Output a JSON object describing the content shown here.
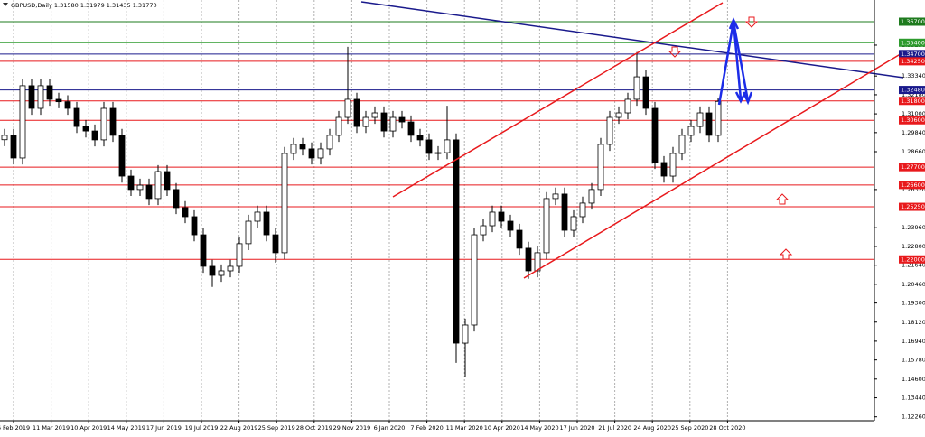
{
  "chart_data": {
    "type": "candlestick",
    "title": "GBPUSD,Daily  1.31580 1.31979 1.31435 1.31770",
    "grid": true,
    "ylim": [
      1.1202,
      1.3804
    ],
    "yticks": [
      {
        "value": 1.3525,
        "label": "1.35250"
      },
      {
        "value": 1.3334,
        "label": "1.33340"
      },
      {
        "value": 1.3218,
        "label": "1.32180"
      },
      {
        "value": 1.31,
        "label": "1.31000"
      },
      {
        "value": 1.2984,
        "label": "1.29840"
      },
      {
        "value": 1.2866,
        "label": "1.28660"
      },
      {
        "value": 1.2632,
        "label": "1.26320"
      },
      {
        "value": 1.2396,
        "label": "1.23960"
      },
      {
        "value": 1.228,
        "label": "1.22800"
      },
      {
        "value": 1.2164,
        "label": "1.21640"
      },
      {
        "value": 1.2046,
        "label": "1.20460"
      },
      {
        "value": 1.193,
        "label": "1.19300"
      },
      {
        "value": 1.1812,
        "label": "1.18120"
      },
      {
        "value": 1.1694,
        "label": "1.16940"
      },
      {
        "value": 1.1578,
        "label": "1.15780"
      },
      {
        "value": 1.146,
        "label": "1.14600"
      },
      {
        "value": 1.1344,
        "label": "1.13440"
      },
      {
        "value": 1.1226,
        "label": "1.12260"
      }
    ],
    "xticks": [
      "6 Feb 2019",
      "11 Mar 2019",
      "10 Apr 2019",
      "14 May 2019",
      "17 Jun 2019",
      "19 Jul 2019",
      "22 Aug 2019",
      "25 Sep 2019",
      "28 Oct 2019",
      "29 Nov 2019",
      "6 Jan 2020",
      "7 Feb 2020",
      "11 Mar 2020",
      "10 Apr 2020",
      "14 May 2020",
      "17 Jun 2020",
      "21 Jul 2020",
      "24 Aug 2020",
      "25 Sep 2020",
      "28 Oct 2020"
    ],
    "levels": [
      {
        "value": 1.367,
        "label": "1.36700",
        "color": "#1e7b1e"
      },
      {
        "value": 1.354,
        "label": "1.35400",
        "color": "#2e9b2e"
      },
      {
        "value": 1.347,
        "label": "1.34700",
        "color": "#1a1a8c"
      },
      {
        "value": 1.3425,
        "label": "1.34250",
        "color": "#e8191c"
      },
      {
        "value": 1.3248,
        "label": "1.32480",
        "color": "#1a1a8c"
      },
      {
        "value": 1.318,
        "label": "1.31800",
        "color": "#e8191c"
      },
      {
        "value": 1.306,
        "label": "1.30600",
        "color": "#e8191c"
      },
      {
        "value": 1.277,
        "label": "1.27700",
        "color": "#e8191c"
      },
      {
        "value": 1.266,
        "label": "1.26600",
        "color": "#e8191c"
      },
      {
        "value": 1.2525,
        "label": "1.25250",
        "color": "#e8191c"
      },
      {
        "value": 1.22,
        "label": "1.22000",
        "color": "#e8191c"
      }
    ],
    "open": [
      1.294,
      1.2967,
      1.2827,
      1.3274,
      1.3134,
      1.3274,
      1.319,
      1.3175,
      1.3134,
      1.3022,
      1.2994,
      1.2939,
      1.3134,
      1.2967,
      1.2715,
      1.2632,
      1.2659,
      1.2576,
      1.2743,
      1.2632,
      1.252,
      1.2464,
      1.2352,
      1.2157,
      1.2101,
      1.2129,
      1.2157,
      1.2297,
      1.2436,
      1.2492,
      1.2352,
      1.2241,
      1.2855,
      1.2911,
      1.2883,
      1.2827,
      1.2883,
      1.2967,
      1.3078,
      1.319,
      1.3022,
      1.3078,
      1.3106,
      1.2994,
      1.3078,
      1.305,
      1.2967,
      1.2939,
      1.2855,
      1.286,
      1.2939,
      1.1682,
      1.1794,
      1.2352,
      1.2408,
      1.2492,
      1.2436,
      1.238,
      1.2269,
      1.2129,
      1.2241,
      1.2576,
      1.2604,
      1.238,
      1.2464,
      1.2548,
      1.2632,
      1.2911,
      1.3078,
      1.3106,
      1.319,
      1.3329,
      1.3134,
      1.2799,
      1.2715,
      1.2855,
      1.2967,
      1.3022,
      1.3106,
      1.2967
    ],
    "high": [
      1.3007,
      1.3007,
      1.3314,
      1.3314,
      1.3314,
      1.3314,
      1.323,
      1.3215,
      1.3174,
      1.3062,
      1.3034,
      1.3174,
      1.3174,
      1.3007,
      1.2755,
      1.2699,
      1.2699,
      1.2783,
      1.2783,
      1.2672,
      1.256,
      1.2504,
      1.2392,
      1.2197,
      1.2169,
      1.2197,
      1.2337,
      1.2476,
      1.2532,
      1.2532,
      1.2392,
      1.2895,
      1.2951,
      1.2951,
      1.2923,
      1.2923,
      1.3007,
      1.3118,
      1.3514,
      1.323,
      1.3118,
      1.3146,
      1.3146,
      1.3118,
      1.3118,
      1.309,
      1.3007,
      1.2979,
      1.29,
      1.315,
      1.2979,
      1.1834,
      1.2392,
      1.2448,
      1.2532,
      1.2532,
      1.2476,
      1.242,
      1.2309,
      1.2281,
      1.2616,
      1.2644,
      1.2644,
      1.2504,
      1.2588,
      1.2672,
      1.2951,
      1.3118,
      1.3146,
      1.323,
      1.3482,
      1.3369,
      1.3174,
      1.2839,
      1.2895,
      1.3007,
      1.3062,
      1.3146,
      1.3146,
      1.3198
    ],
    "low": [
      1.29,
      1.2787,
      1.2787,
      1.3094,
      1.3094,
      1.315,
      1.3135,
      1.3094,
      1.2982,
      1.2954,
      1.2899,
      1.2899,
      1.2927,
      1.2675,
      1.2592,
      1.2592,
      1.2536,
      1.2536,
      1.2592,
      1.248,
      1.2424,
      1.2312,
      1.2117,
      1.203,
      1.2061,
      1.2089,
      1.2117,
      1.2257,
      1.2396,
      1.2312,
      1.218,
      1.2201,
      1.2815,
      1.2843,
      1.2787,
      1.2787,
      1.2843,
      1.2927,
      1.3038,
      1.2982,
      1.2982,
      1.3038,
      1.2954,
      1.2954,
      1.301,
      1.2927,
      1.2899,
      1.2815,
      1.2815,
      1.282,
      1.156,
      1.147,
      1.1754,
      1.2312,
      1.2368,
      1.2396,
      1.234,
      1.2229,
      1.208,
      1.2089,
      1.2201,
      1.2536,
      1.234,
      1.234,
      1.2424,
      1.2508,
      1.2592,
      1.2871,
      1.3038,
      1.3066,
      1.315,
      1.3094,
      1.2759,
      1.2675,
      1.2675,
      1.2815,
      1.2927,
      1.2982,
      1.2927,
      1.2927
    ],
    "close": [
      1.2967,
      1.2827,
      1.3274,
      1.3134,
      1.3274,
      1.319,
      1.3175,
      1.3134,
      1.3022,
      1.2994,
      1.2939,
      1.3134,
      1.2967,
      1.2715,
      1.2632,
      1.2659,
      1.2576,
      1.2743,
      1.2632,
      1.252,
      1.2464,
      1.2352,
      1.2157,
      1.2101,
      1.2129,
      1.2157,
      1.2297,
      1.2436,
      1.2492,
      1.2352,
      1.2241,
      1.2855,
      1.2911,
      1.2883,
      1.2827,
      1.2883,
      1.2967,
      1.3078,
      1.319,
      1.3022,
      1.3078,
      1.3106,
      1.2994,
      1.3078,
      1.305,
      1.2967,
      1.2939,
      1.2855,
      1.286,
      1.2939,
      1.1682,
      1.1794,
      1.2352,
      1.2408,
      1.2492,
      1.2436,
      1.238,
      1.2269,
      1.2129,
      1.2241,
      1.2576,
      1.2604,
      1.238,
      1.2464,
      1.2548,
      1.2632,
      1.2911,
      1.3078,
      1.3106,
      1.319,
      1.3329,
      1.3134,
      1.2799,
      1.2715,
      1.2855,
      1.2967,
      1.3022,
      1.3106,
      1.2967,
      1.3177
    ]
  }
}
